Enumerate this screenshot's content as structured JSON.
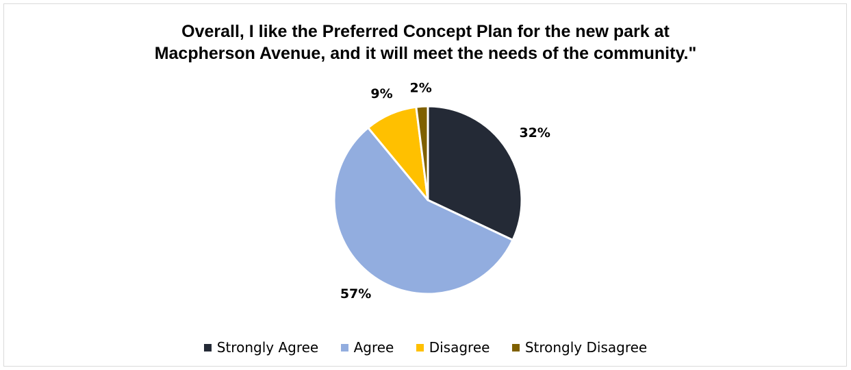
{
  "chart_data": {
    "type": "pie",
    "title_lines": [
      "Overall, I like the Preferred Concept Plan for the new park at",
      "Macpherson Avenue, and it will meet the needs of the community.\""
    ],
    "categories": [
      "Strongly Agree",
      "Agree",
      "Disagree",
      "Strongly Disagree"
    ],
    "values": [
      32,
      57,
      9,
      2
    ],
    "labels": [
      "32%",
      "57%",
      "9%",
      "2%"
    ],
    "colors": [
      "#242a36",
      "#92addf",
      "#ffc000",
      "#7f6000"
    ],
    "legend_position": "bottom",
    "start_angle": "12 o'clock, clockwise"
  }
}
